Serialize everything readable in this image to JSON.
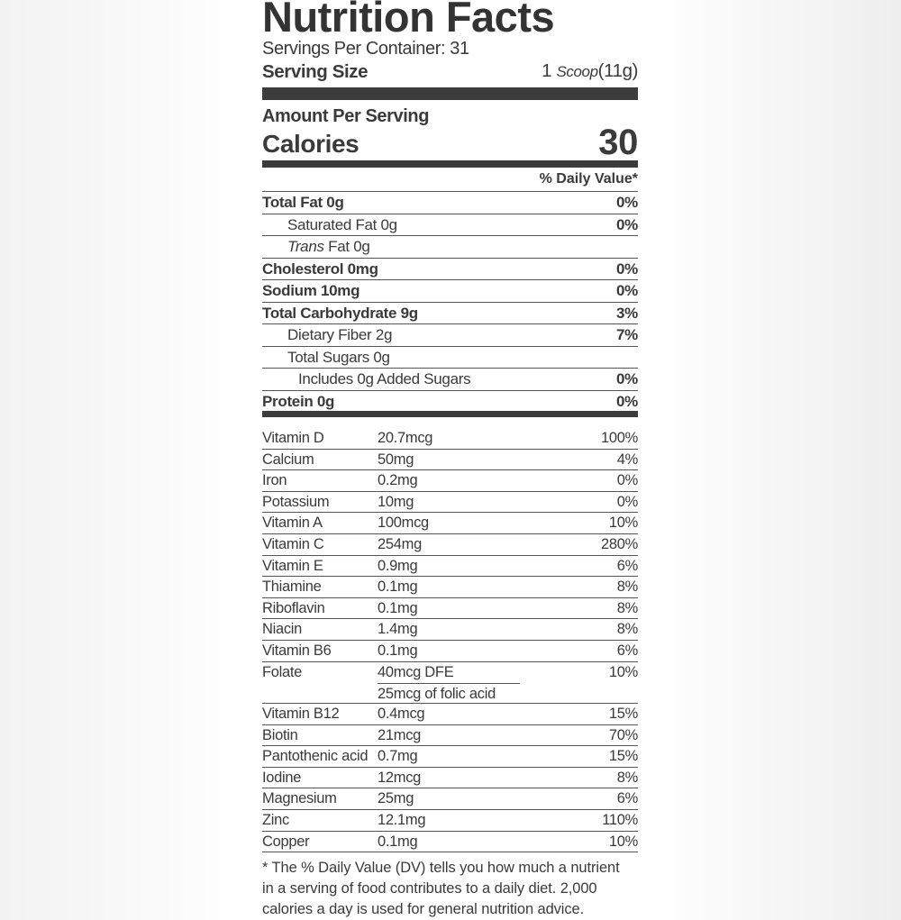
{
  "header": {
    "title": "Nutrition Facts",
    "servings_per_container": "Servings Per Container: 31",
    "serving_size_label": "Serving Size",
    "serving_size_qty": "1",
    "serving_size_unit": "Scoop",
    "serving_size_weight": "(11g)"
  },
  "calories": {
    "amount_per_serving": "Amount Per Serving",
    "label": "Calories",
    "value": "30"
  },
  "daily_value_header": "% Daily Value*",
  "macros": [
    {
      "name": "Total Fat 0g",
      "dv": "0%",
      "style": "b"
    },
    {
      "name": "Saturated Fat 0g",
      "dv": "0%",
      "style": "i1"
    },
    {
      "name": "Trans Fat 0g",
      "dv": "",
      "style": "i1"
    },
    {
      "name": "Cholesterol 0mg",
      "dv": "0%",
      "style": "b"
    },
    {
      "name": "Sodium 10mg",
      "dv": "0%",
      "style": "b"
    },
    {
      "name": "Total Carbohydrate 9g",
      "dv": "3%",
      "style": "b"
    },
    {
      "name": "Dietary Fiber 2g",
      "dv": "7%",
      "style": "i1"
    },
    {
      "name": "Total Sugars 0g",
      "dv": "",
      "style": "i1"
    },
    {
      "name": "Includes 0g Added Sugars",
      "dv": "0%",
      "style": "i2"
    },
    {
      "name": "Protein 0g",
      "dv": "0%",
      "style": "b"
    }
  ],
  "vitamins": [
    {
      "name": "Vitamin D",
      "amount": "20.7mcg",
      "dv": "100%"
    },
    {
      "name": "Calcium",
      "amount": "50mg",
      "dv": "4%"
    },
    {
      "name": "Iron",
      "amount": "0.2mg",
      "dv": "0%"
    },
    {
      "name": "Potassium",
      "amount": "10mg",
      "dv": "0%"
    },
    {
      "name": "Vitamin A",
      "amount": "100mcg",
      "dv": "10%"
    },
    {
      "name": "Vitamin C",
      "amount": "254mg",
      "dv": "280%"
    },
    {
      "name": "Vitamin E",
      "amount": "0.9mg",
      "dv": "6%"
    },
    {
      "name": "Thiamine",
      "amount": "0.1mg",
      "dv": "8%"
    },
    {
      "name": "Riboflavin",
      "amount": "0.1mg",
      "dv": "8%"
    },
    {
      "name": "Niacin",
      "amount": "1.4mg",
      "dv": "8%"
    },
    {
      "name": "Vitamin B6",
      "amount": "0.1mg",
      "dv": "6%"
    }
  ],
  "folate": {
    "name": "Folate",
    "amount": "40mcg DFE",
    "sub": "25mcg of folic acid",
    "dv": "10%"
  },
  "vitamins2": [
    {
      "name": "Vitamin B12",
      "amount": "0.4mcg",
      "dv": "15%"
    },
    {
      "name": "Biotin",
      "amount": "21mcg",
      "dv": "70%"
    },
    {
      "name": "Pantothenic acid",
      "amount": "0.7mg",
      "dv": "15%"
    },
    {
      "name": "Iodine",
      "amount": "12mcg",
      "dv": "8%"
    },
    {
      "name": "Magnesium",
      "amount": "25mg",
      "dv": "6%"
    },
    {
      "name": "Zinc",
      "amount": "12.1mg",
      "dv": "110%"
    },
    {
      "name": "Copper",
      "amount": "0.1mg",
      "dv": "10%"
    }
  ],
  "footnote": [
    "* The % Daily Value (DV) tells you how much a nutrient",
    "in a serving of food contributes to a daily diet. 2,000",
    "calories a day is used for general nutrition advice."
  ]
}
